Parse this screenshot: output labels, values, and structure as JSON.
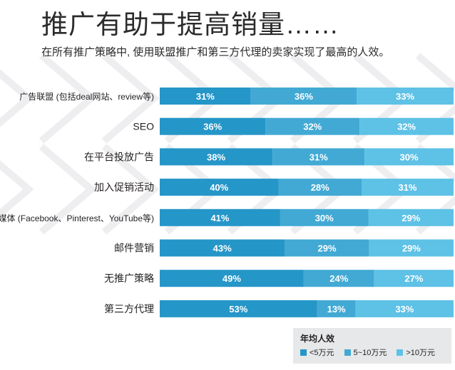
{
  "header": {
    "title": "推广有助于提高销量……",
    "subtitle": "在所有推广策略中, 使用联盟推广和第三方代理的卖家实现了最高的人效。"
  },
  "legend": {
    "title": "年均人效",
    "items": [
      {
        "label": "<5万元",
        "color": "#2596c8"
      },
      {
        "label": "5~10万元",
        "color": "#42a9d4"
      },
      {
        "label": ">10万元",
        "color": "#5ec1e6"
      }
    ]
  },
  "chart_data": {
    "type": "bar",
    "orientation": "horizontal",
    "stacked": true,
    "value_format": "percent",
    "categories": [
      "广告联盟 (包括deal网站、review等)",
      "SEO",
      "在平台投放广告",
      "加入促销活动",
      "社交媒体 (Facebook、Pinterest、YouTube等)",
      "邮件营销",
      "无推广策略",
      "第三方代理"
    ],
    "series": [
      {
        "name": "<5万元",
        "color": "#2596c8",
        "values": [
          31,
          36,
          38,
          40,
          41,
          43,
          49,
          53
        ]
      },
      {
        "name": "5~10万元",
        "color": "#42a9d4",
        "values": [
          36,
          32,
          31,
          28,
          30,
          29,
          24,
          13
        ]
      },
      {
        "name": ">10万元",
        "color": "#5ec1e6",
        "values": [
          33,
          32,
          30,
          31,
          29,
          29,
          27,
          33
        ]
      }
    ],
    "legend_position": "bottom-right",
    "grid": false
  }
}
